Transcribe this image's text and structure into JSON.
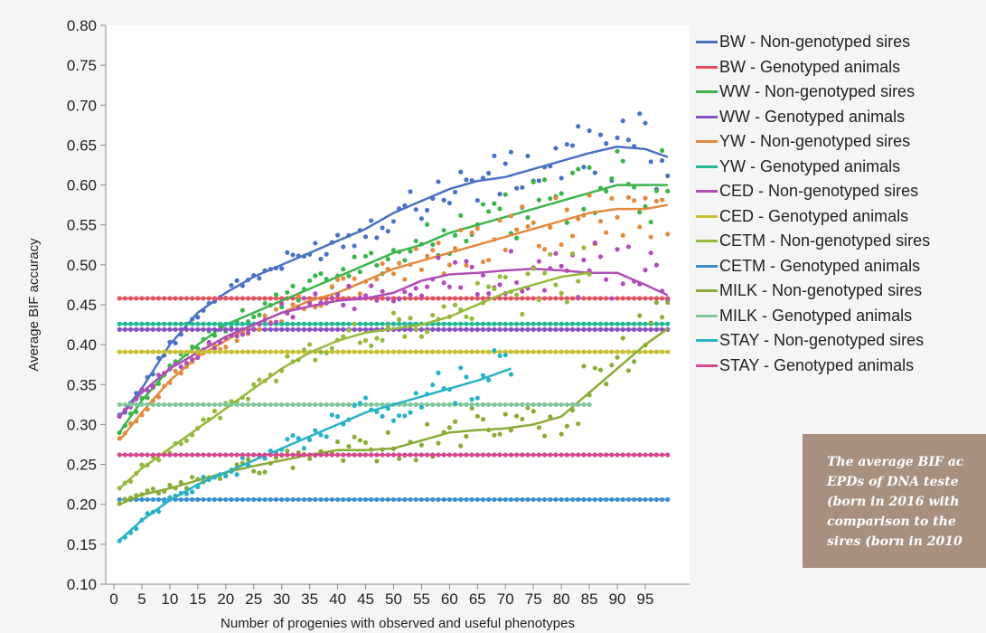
{
  "chart_data": {
    "type": "scatter",
    "title": "",
    "xlabel": "Number of progenies with observed and useful phenotypes",
    "ylabel": "Average BIF accuracy",
    "xlim": [
      0,
      100
    ],
    "ylim": [
      0.1,
      0.8
    ],
    "xticks": [
      0,
      5,
      10,
      15,
      20,
      25,
      30,
      35,
      40,
      45,
      50,
      55,
      60,
      65,
      70,
      75,
      80,
      85,
      90,
      95
    ],
    "yticks": [
      0.1,
      0.15,
      0.2,
      0.25,
      0.3,
      0.35,
      0.4,
      0.45,
      0.5,
      0.55,
      0.6,
      0.65,
      0.7,
      0.75,
      0.8
    ],
    "legend_position": "right",
    "grid": false,
    "series": [
      {
        "name": "BW - Non-genotyped sires",
        "color": "#4a72c4",
        "x_max": 99,
        "curve": [
          [
            1,
            0.31
          ],
          [
            5,
            0.345
          ],
          [
            10,
            0.4
          ],
          [
            15,
            0.44
          ],
          [
            20,
            0.465
          ],
          [
            25,
            0.485
          ],
          [
            30,
            0.5
          ],
          [
            35,
            0.515
          ],
          [
            40,
            0.53
          ],
          [
            45,
            0.545
          ],
          [
            50,
            0.565
          ],
          [
            55,
            0.58
          ],
          [
            60,
            0.595
          ],
          [
            65,
            0.605
          ],
          [
            70,
            0.61
          ],
          [
            75,
            0.62
          ],
          [
            80,
            0.63
          ],
          [
            85,
            0.64
          ],
          [
            90,
            0.648
          ],
          [
            95,
            0.645
          ],
          [
            99,
            0.635
          ]
        ]
      },
      {
        "name": "BW - Genotyped animals",
        "color": "#e6505c",
        "x_max": 99,
        "constant": 0.458
      },
      {
        "name": "WW - Non-genotyped sires",
        "color": "#3bb54a",
        "x_max": 99,
        "curve": [
          [
            1,
            0.29
          ],
          [
            5,
            0.33
          ],
          [
            10,
            0.37
          ],
          [
            15,
            0.4
          ],
          [
            20,
            0.425
          ],
          [
            25,
            0.44
          ],
          [
            30,
            0.455
          ],
          [
            35,
            0.47
          ],
          [
            40,
            0.485
          ],
          [
            45,
            0.5
          ],
          [
            50,
            0.515
          ],
          [
            55,
            0.525
          ],
          [
            60,
            0.54
          ],
          [
            65,
            0.55
          ],
          [
            70,
            0.56
          ],
          [
            75,
            0.57
          ],
          [
            80,
            0.58
          ],
          [
            85,
            0.59
          ],
          [
            90,
            0.6
          ],
          [
            95,
            0.6
          ],
          [
            99,
            0.6
          ]
        ]
      },
      {
        "name": "WW - Genotyped animals",
        "color": "#8a4fc2",
        "x_max": 99,
        "constant": 0.419
      },
      {
        "name": "YW - Non-genotyped sires",
        "color": "#e38a3f",
        "x_max": 99,
        "curve": [
          [
            1,
            0.28
          ],
          [
            5,
            0.315
          ],
          [
            10,
            0.355
          ],
          [
            15,
            0.385
          ],
          [
            20,
            0.405
          ],
          [
            25,
            0.425
          ],
          [
            30,
            0.44
          ],
          [
            35,
            0.455
          ],
          [
            40,
            0.465
          ],
          [
            45,
            0.48
          ],
          [
            50,
            0.495
          ],
          [
            55,
            0.505
          ],
          [
            60,
            0.515
          ],
          [
            65,
            0.525
          ],
          [
            70,
            0.535
          ],
          [
            75,
            0.545
          ],
          [
            80,
            0.555
          ],
          [
            85,
            0.565
          ],
          [
            90,
            0.57
          ],
          [
            95,
            0.57
          ],
          [
            99,
            0.575
          ]
        ]
      },
      {
        "name": "YW - Genotyped animals",
        "color": "#1fb894",
        "x_max": 99,
        "constant": 0.426
      },
      {
        "name": "CED - Non-genotyped sires",
        "color": "#b04db8",
        "x_max": 99,
        "curve": [
          [
            1,
            0.31
          ],
          [
            5,
            0.34
          ],
          [
            10,
            0.37
          ],
          [
            15,
            0.39
          ],
          [
            20,
            0.41
          ],
          [
            25,
            0.425
          ],
          [
            30,
            0.44
          ],
          [
            35,
            0.448
          ],
          [
            40,
            0.455
          ],
          [
            45,
            0.458
          ],
          [
            50,
            0.465
          ],
          [
            55,
            0.48
          ],
          [
            60,
            0.488
          ],
          [
            65,
            0.49
          ],
          [
            70,
            0.493
          ],
          [
            75,
            0.495
          ],
          [
            80,
            0.493
          ],
          [
            85,
            0.49
          ],
          [
            90,
            0.49
          ],
          [
            95,
            0.475
          ],
          [
            99,
            0.462
          ]
        ]
      },
      {
        "name": "CED - Genotyped animals",
        "color": "#c9bf30",
        "x_max": 99,
        "constant": 0.391
      },
      {
        "name": "CETM - Non-genotyped sires",
        "color": "#95b93d",
        "x_max": 85,
        "curve": [
          [
            1,
            0.22
          ],
          [
            5,
            0.245
          ],
          [
            10,
            0.27
          ],
          [
            15,
            0.295
          ],
          [
            20,
            0.32
          ],
          [
            25,
            0.345
          ],
          [
            30,
            0.37
          ],
          [
            35,
            0.39
          ],
          [
            40,
            0.405
          ],
          [
            45,
            0.415
          ],
          [
            50,
            0.42
          ],
          [
            55,
            0.425
          ],
          [
            60,
            0.435
          ],
          [
            65,
            0.45
          ],
          [
            70,
            0.465
          ],
          [
            75,
            0.475
          ],
          [
            80,
            0.485
          ],
          [
            85,
            0.49
          ]
        ]
      },
      {
        "name": "CETM - Genotyped animals",
        "color": "#3a8fd0",
        "x_max": 99,
        "constant": 0.206
      },
      {
        "name": "MILK - Non-genotyped sires",
        "color": "#8aab36",
        "x_max": 99,
        "curve": [
          [
            1,
            0.2
          ],
          [
            5,
            0.212
          ],
          [
            10,
            0.22
          ],
          [
            15,
            0.23
          ],
          [
            20,
            0.24
          ],
          [
            25,
            0.248
          ],
          [
            30,
            0.255
          ],
          [
            35,
            0.262
          ],
          [
            40,
            0.268
          ],
          [
            45,
            0.268
          ],
          [
            50,
            0.27
          ],
          [
            55,
            0.28
          ],
          [
            60,
            0.29
          ],
          [
            65,
            0.293
          ],
          [
            70,
            0.295
          ],
          [
            75,
            0.3
          ],
          [
            80,
            0.31
          ],
          [
            85,
            0.34
          ],
          [
            90,
            0.37
          ],
          [
            95,
            0.4
          ],
          [
            99,
            0.42
          ]
        ]
      },
      {
        "name": "MILK - Genotyped animals",
        "color": "#7ec89b",
        "x_max": 85,
        "constant": 0.325
      },
      {
        "name": "STAY - Non-genotyped sires",
        "color": "#27b2c6",
        "x_max": 71,
        "curve": [
          [
            1,
            0.155
          ],
          [
            5,
            0.18
          ],
          [
            10,
            0.205
          ],
          [
            15,
            0.225
          ],
          [
            20,
            0.24
          ],
          [
            25,
            0.255
          ],
          [
            30,
            0.27
          ],
          [
            35,
            0.285
          ],
          [
            40,
            0.3
          ],
          [
            45,
            0.315
          ],
          [
            50,
            0.325
          ],
          [
            55,
            0.335
          ],
          [
            60,
            0.345
          ],
          [
            65,
            0.355
          ],
          [
            71,
            0.37
          ]
        ]
      },
      {
        "name": "STAY - Genotyped animals",
        "color": "#d7468e",
        "x_max": 99,
        "constant": 0.262
      }
    ]
  },
  "caption": {
    "text": "The average BIF ac\nEPDs of DNA teste\n(born in 2016 with\ncomparison to the\nsires (born in 2010"
  }
}
